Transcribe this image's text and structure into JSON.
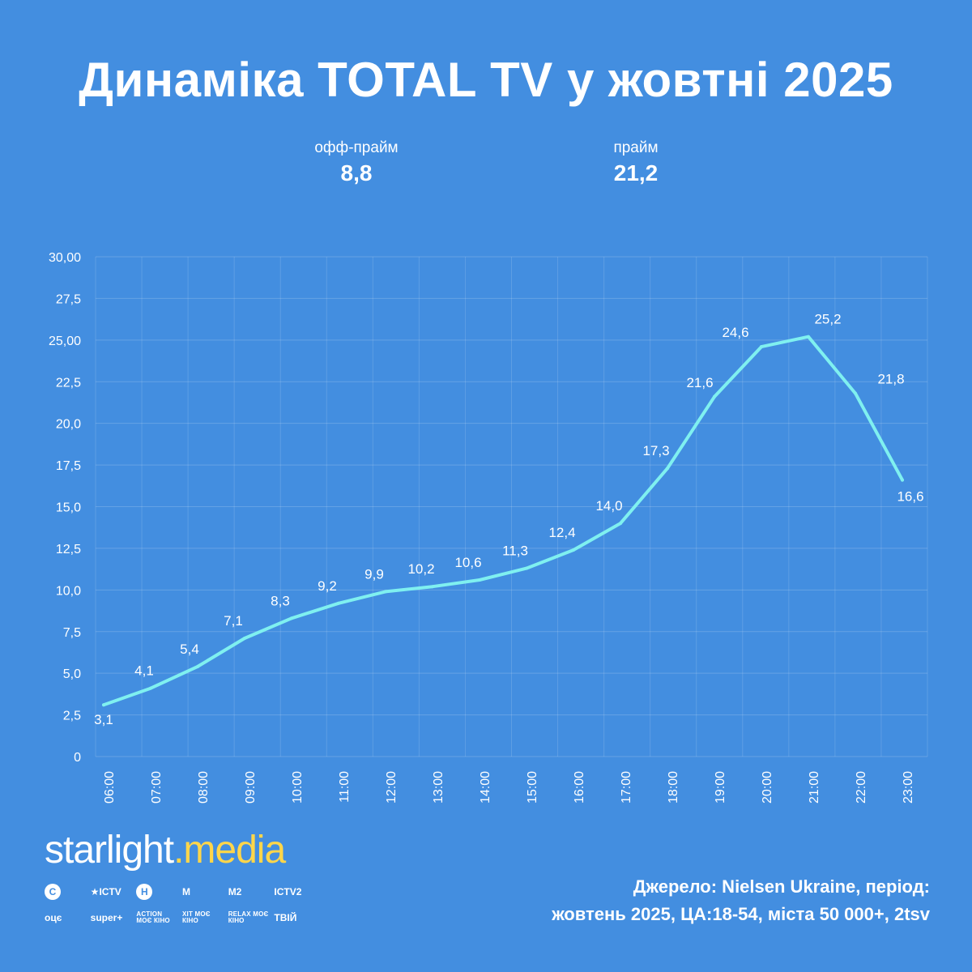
{
  "title": "Динаміка TOTAL TV у жовтні 2025",
  "kpis": {
    "offprime": {
      "label": "офф-прайм",
      "value": "8,8"
    },
    "prime": {
      "label": "прайм",
      "value": "21,2"
    }
  },
  "chart_data": {
    "type": "line",
    "categories": [
      "06:00",
      "07:00",
      "08:00",
      "09:00",
      "10:00",
      "11:00",
      "12:00",
      "13:00",
      "14:00",
      "15:00",
      "16:00",
      "17:00",
      "18:00",
      "19:00",
      "20:00",
      "21:00",
      "22:00",
      "23:00"
    ],
    "values": [
      3.1,
      4.1,
      5.4,
      7.1,
      8.3,
      9.2,
      9.9,
      10.2,
      10.6,
      11.3,
      12.4,
      14.0,
      17.3,
      21.6,
      24.6,
      25.2,
      21.8,
      16.6
    ],
    "data_labels": [
      "3,1",
      "4,1",
      "5,4",
      "7,1",
      "8,3",
      "9,2",
      "9,9",
      "10,2",
      "10,6",
      "11,3",
      "12,4",
      "14,0",
      "17,3",
      "21,6",
      "24,6",
      "25,2",
      "21,8",
      "16,6"
    ],
    "y_ticks": [
      {
        "value": 0,
        "label": "0"
      },
      {
        "value": 2.5,
        "label": "2,5"
      },
      {
        "value": 5,
        "label": "5,0"
      },
      {
        "value": 7.5,
        "label": "7,5"
      },
      {
        "value": 10,
        "label": "10,0"
      },
      {
        "value": 12.5,
        "label": "12,5"
      },
      {
        "value": 15,
        "label": "15,0"
      },
      {
        "value": 17.5,
        "label": "17,5"
      },
      {
        "value": 20,
        "label": "20,0"
      },
      {
        "value": 22.5,
        "label": "22,5"
      },
      {
        "value": 25,
        "label": "25,00"
      },
      {
        "value": 27.5,
        "label": "27,5"
      },
      {
        "value": 30,
        "label": "30,00"
      }
    ],
    "ylim": [
      0,
      30
    ],
    "grid": true,
    "line_color": "#7ff0f0"
  },
  "brand": {
    "part1": "starlight",
    "dot": ".",
    "part2": "media"
  },
  "channels": {
    "row1": [
      "С",
      "ICTV",
      "Н",
      "M",
      "M2",
      "ICTV2"
    ],
    "row2": [
      "оцє",
      "super+",
      "ACTION МОЄ КІНО",
      "ХІТ МОЄ КІНО",
      "RELAX МОЄ КІНО",
      "ТВІЙ"
    ]
  },
  "source": {
    "line1": "Джерело: Nielsen Ukraine, період:",
    "line2": "жовтень 2025, ЦА:18-54, міста 50 000+, 2tsv"
  },
  "colors": {
    "background": "#438ee0",
    "line": "#7ff0f0",
    "brand_accent": "#ffd64a"
  }
}
